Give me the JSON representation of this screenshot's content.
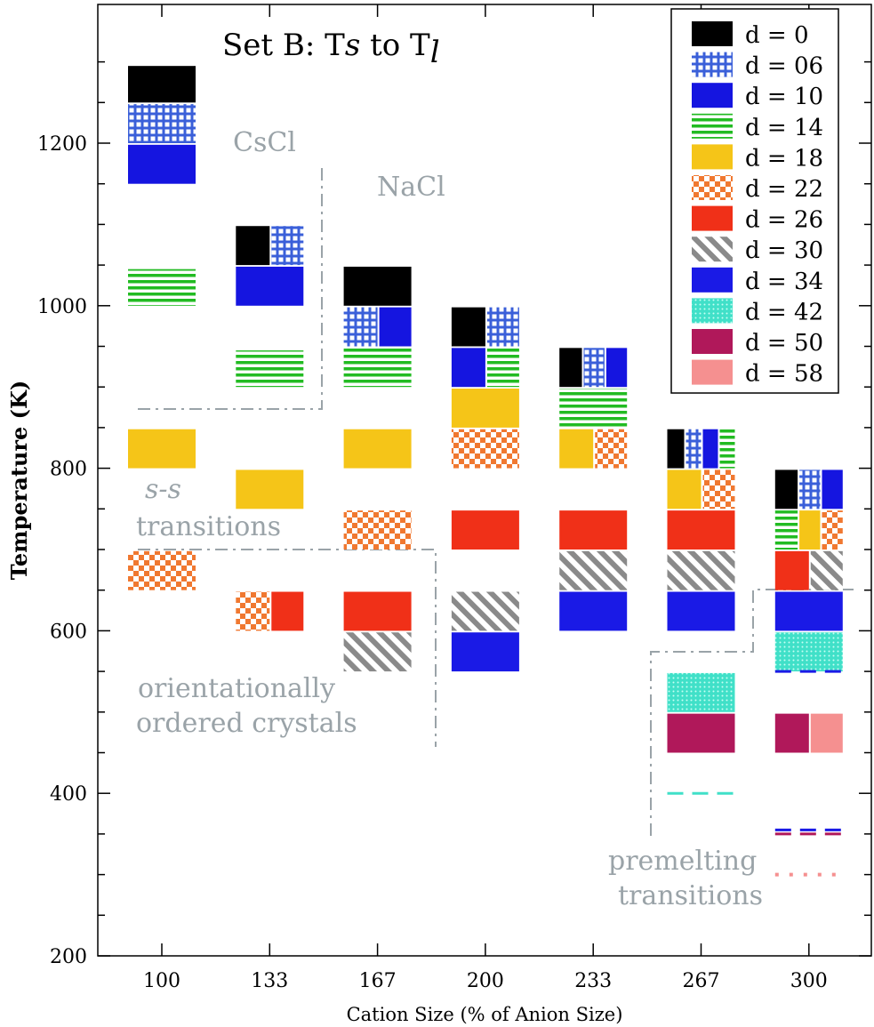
{
  "chart_data": {
    "type": "bar",
    "title": "Set B:  T",
    "title_sub1": "s",
    "title_mid": " to T",
    "title_sub2": "l",
    "xlabel": "Cation Size (% of Anion Size)",
    "ylabel": "Temperature (K)",
    "categories": [
      "100",
      "133",
      "167",
      "200",
      "233",
      "267",
      "300"
    ],
    "ylim": [
      200,
      1320
    ],
    "yticks": [
      "200",
      "400",
      "600",
      "800",
      "1000",
      "1200"
    ],
    "grid": false,
    "legend_position": "top-right",
    "legend": [
      {
        "key": "d0",
        "label": "d = 0",
        "color": "#000000",
        "pattern": "solid"
      },
      {
        "key": "d06",
        "label": "d = 06",
        "color": "#3a5fd9",
        "pattern": "grid"
      },
      {
        "key": "d10",
        "label": "d = 10",
        "color": "#1515e0",
        "pattern": "solid"
      },
      {
        "key": "d14",
        "label": "d = 14",
        "color": "#22bb22",
        "pattern": "hlines"
      },
      {
        "key": "d18",
        "label": "d = 18",
        "color": "#f5c518",
        "pattern": "solid"
      },
      {
        "key": "d22",
        "label": "d = 22",
        "color": "#f07830",
        "pattern": "checker"
      },
      {
        "key": "d26",
        "label": "d = 26",
        "color": "#f03018",
        "pattern": "solid"
      },
      {
        "key": "d30",
        "label": "d = 30",
        "color": "#8a8a8a",
        "pattern": "diag"
      },
      {
        "key": "d34",
        "label": "d = 34",
        "color": "#1a1ae6",
        "pattern": "solid"
      },
      {
        "key": "d42",
        "label": "d = 42",
        "color": "#40e0c8",
        "pattern": "dots"
      },
      {
        "key": "d50",
        "label": "d = 50",
        "color": "#b0185a",
        "pattern": "solid"
      },
      {
        "key": "d58",
        "label": "d = 58",
        "color": "#f59090",
        "pattern": "solid"
      }
    ],
    "bars": [
      {
        "x": "100",
        "d": "d0",
        "y": [
          1250,
          1295
        ]
      },
      {
        "x": "100",
        "d": "d06",
        "y": [
          1200,
          1248
        ]
      },
      {
        "x": "100",
        "d": "d10",
        "y": [
          1150,
          1198
        ]
      },
      {
        "x": "100",
        "d": "d14",
        "y": [
          1000,
          1045
        ]
      },
      {
        "x": "100",
        "d": "d18",
        "y": [
          800,
          848
        ]
      },
      {
        "x": "100",
        "d": "d22",
        "y": [
          650,
          698
        ]
      },
      {
        "x": "133",
        "d": "d0",
        "y": [
          1050,
          1098
        ],
        "part": [
          0,
          0.5
        ]
      },
      {
        "x": "133",
        "d": "d06",
        "y": [
          1050,
          1098
        ],
        "part": [
          0.5,
          1
        ]
      },
      {
        "x": "133",
        "d": "d10",
        "y": [
          1000,
          1048
        ]
      },
      {
        "x": "133",
        "d": "d14",
        "y": [
          900,
          945
        ]
      },
      {
        "x": "133",
        "d": "d18",
        "y": [
          750,
          798
        ]
      },
      {
        "x": "133",
        "d": "d22",
        "y": [
          600,
          648
        ],
        "part": [
          0,
          0.5
        ]
      },
      {
        "x": "133",
        "d": "d26",
        "y": [
          600,
          648
        ],
        "part": [
          0.5,
          1
        ]
      },
      {
        "x": "167",
        "d": "d0",
        "y": [
          1000,
          1048
        ]
      },
      {
        "x": "167",
        "d": "d06",
        "y": [
          950,
          998
        ],
        "part": [
          0,
          0.5
        ]
      },
      {
        "x": "167",
        "d": "d10",
        "y": [
          950,
          998
        ],
        "part": [
          0.5,
          1
        ]
      },
      {
        "x": "167",
        "d": "d14",
        "y": [
          900,
          948
        ]
      },
      {
        "x": "167",
        "d": "d18",
        "y": [
          800,
          848
        ]
      },
      {
        "x": "167",
        "d": "d22",
        "y": [
          700,
          748
        ]
      },
      {
        "x": "167",
        "d": "d26",
        "y": [
          600,
          648
        ]
      },
      {
        "x": "167",
        "d": "d30",
        "y": [
          550,
          598
        ]
      },
      {
        "x": "200",
        "d": "d0",
        "y": [
          950,
          998
        ],
        "part": [
          0,
          0.5
        ]
      },
      {
        "x": "200",
        "d": "d06",
        "y": [
          950,
          998
        ],
        "part": [
          0.5,
          1
        ]
      },
      {
        "x": "200",
        "d": "d10",
        "y": [
          900,
          948
        ],
        "part": [
          0,
          0.5
        ]
      },
      {
        "x": "200",
        "d": "d14",
        "y": [
          900,
          948
        ],
        "part": [
          0.5,
          1
        ]
      },
      {
        "x": "200",
        "d": "d18",
        "y": [
          850,
          898
        ]
      },
      {
        "x": "200",
        "d": "d22",
        "y": [
          800,
          848
        ]
      },
      {
        "x": "200",
        "d": "d26",
        "y": [
          700,
          748
        ]
      },
      {
        "x": "200",
        "d": "d30",
        "y": [
          600,
          648
        ]
      },
      {
        "x": "200",
        "d": "d34",
        "y": [
          550,
          598
        ]
      },
      {
        "x": "233",
        "d": "d0",
        "y": [
          900,
          948
        ],
        "part": [
          0,
          0.333
        ]
      },
      {
        "x": "233",
        "d": "d06",
        "y": [
          900,
          948
        ],
        "part": [
          0.333,
          0.667
        ]
      },
      {
        "x": "233",
        "d": "d10",
        "y": [
          900,
          948
        ],
        "part": [
          0.667,
          1
        ]
      },
      {
        "x": "233",
        "d": "d14",
        "y": [
          850,
          898
        ]
      },
      {
        "x": "233",
        "d": "d18",
        "y": [
          800,
          848
        ],
        "part": [
          0,
          0.5
        ]
      },
      {
        "x": "233",
        "d": "d22",
        "y": [
          800,
          848
        ],
        "part": [
          0.5,
          1
        ]
      },
      {
        "x": "233",
        "d": "d26",
        "y": [
          700,
          748
        ]
      },
      {
        "x": "233",
        "d": "d30",
        "y": [
          650,
          698
        ]
      },
      {
        "x": "233",
        "d": "d34",
        "y": [
          600,
          648
        ]
      },
      {
        "x": "267",
        "d": "d0",
        "y": [
          800,
          848
        ],
        "part": [
          0,
          0.25
        ]
      },
      {
        "x": "267",
        "d": "d06",
        "y": [
          800,
          848
        ],
        "part": [
          0.25,
          0.5
        ]
      },
      {
        "x": "267",
        "d": "d10",
        "y": [
          800,
          848
        ],
        "part": [
          0.5,
          0.75
        ]
      },
      {
        "x": "267",
        "d": "d14",
        "y": [
          800,
          848
        ],
        "part": [
          0.75,
          1
        ]
      },
      {
        "x": "267",
        "d": "d18",
        "y": [
          750,
          798
        ],
        "part": [
          0,
          0.5
        ]
      },
      {
        "x": "267",
        "d": "d22",
        "y": [
          750,
          798
        ],
        "part": [
          0.5,
          1
        ]
      },
      {
        "x": "267",
        "d": "d26",
        "y": [
          700,
          748
        ]
      },
      {
        "x": "267",
        "d": "d30",
        "y": [
          650,
          698
        ]
      },
      {
        "x": "267",
        "d": "d34",
        "y": [
          600,
          648
        ]
      },
      {
        "x": "267",
        "d": "d42",
        "y": [
          500,
          548
        ]
      },
      {
        "x": "267",
        "d": "d50",
        "y": [
          450,
          498
        ]
      },
      {
        "x": "300",
        "d": "d0",
        "y": [
          750,
          798
        ],
        "part": [
          0,
          0.333
        ]
      },
      {
        "x": "300",
        "d": "d06",
        "y": [
          750,
          798
        ],
        "part": [
          0.333,
          0.667
        ]
      },
      {
        "x": "300",
        "d": "d10",
        "y": [
          750,
          798
        ],
        "part": [
          0.667,
          1
        ]
      },
      {
        "x": "300",
        "d": "d14",
        "y": [
          700,
          748
        ],
        "part": [
          0,
          0.333
        ]
      },
      {
        "x": "300",
        "d": "d18",
        "y": [
          700,
          748
        ],
        "part": [
          0.333,
          0.667
        ]
      },
      {
        "x": "300",
        "d": "d22",
        "y": [
          700,
          748
        ],
        "part": [
          0.667,
          1
        ]
      },
      {
        "x": "300",
        "d": "d26",
        "y": [
          650,
          698
        ],
        "part": [
          0,
          0.5
        ]
      },
      {
        "x": "300",
        "d": "d30",
        "y": [
          650,
          698
        ],
        "part": [
          0.5,
          1
        ]
      },
      {
        "x": "300",
        "d": "d34",
        "y": [
          600,
          648
        ]
      },
      {
        "x": "300",
        "d": "d42",
        "y": [
          550,
          598
        ]
      },
      {
        "x": "300",
        "d": "d50",
        "y": [
          450,
          498
        ],
        "part": [
          0,
          0.5
        ]
      },
      {
        "x": "300",
        "d": "d58",
        "y": [
          450,
          498
        ],
        "part": [
          0.5,
          1
        ]
      }
    ],
    "dashes": [
      {
        "x": "267",
        "d": "d42",
        "y": 400
      },
      {
        "x": "300",
        "d": "d34",
        "y": 550
      },
      {
        "x": "300",
        "d": "d34",
        "y": 355
      },
      {
        "x": "300",
        "d": "d50",
        "y": 350
      },
      {
        "x": "300",
        "d": "d58",
        "y": 300,
        "style": "dotted"
      }
    ],
    "annotations": {
      "cscl": "CsCl",
      "nacl": "NaCl",
      "ss_italic": "s-s",
      "ss_rest": "transitions",
      "ordered_1": "orientationally",
      "ordered_2": "ordered crystals",
      "premelt_1": "premelting",
      "premelt_2": "transitions"
    }
  }
}
